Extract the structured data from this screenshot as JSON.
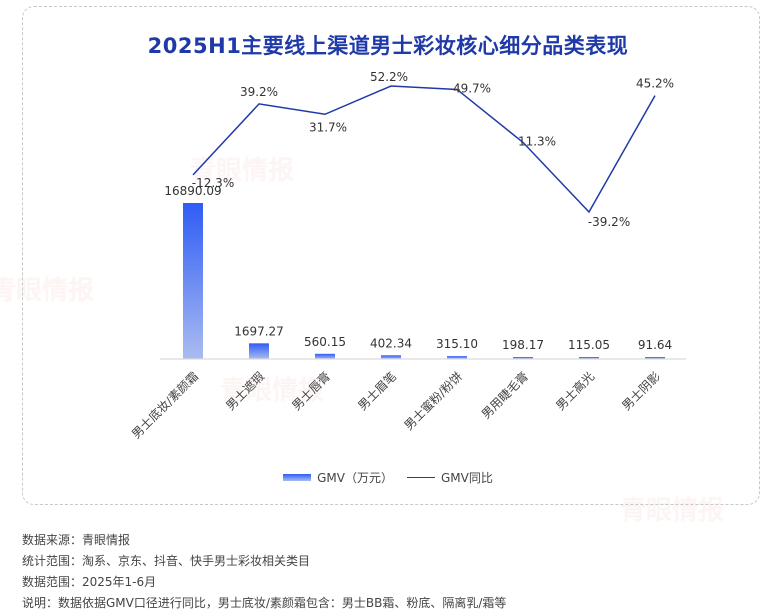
{
  "title": "2025H1主要线上渠道男士彩妆核心细分品类表现",
  "legend": {
    "bar_label": "GMV（万元）",
    "line_label": "GMV同比"
  },
  "colors": {
    "title": "#1f3aa8",
    "bar_top": "#2f5cf5",
    "bar_bottom": "#a9bcf0",
    "line": "#1f3aa8",
    "axis": "#d9d9d9"
  },
  "chart_data": {
    "type": "bar+line",
    "title": "2025H1主要线上渠道男士彩妆核心细分品类表现",
    "categories": [
      "男士底妆/素颜霜",
      "男士遮瑕",
      "男士唇膏",
      "男士眉笔",
      "男士蜜粉/粉饼",
      "男用睫毛膏",
      "男士高光",
      "男士阴影"
    ],
    "series": [
      {
        "name": "GMV（万元）",
        "type": "bar",
        "values": [
          16890.09,
          1697.27,
          560.15,
          402.34,
          315.1,
          198.17,
          115.05,
          91.64
        ],
        "labels": [
          "16890.09",
          "1697.27",
          "560.15",
          "402.34",
          "315.10",
          "198.17",
          "115.05",
          "91.64"
        ]
      },
      {
        "name": "GMV同比",
        "type": "line",
        "values": [
          -12.3,
          39.2,
          31.7,
          52.2,
          49.7,
          11.3,
          -39.2,
          45.2
        ],
        "labels": [
          "-12.3%",
          "39.2%",
          "31.7%",
          "52.2%",
          "49.7%",
          "11.3%",
          "-39.2%",
          "45.2%"
        ]
      }
    ],
    "xlabel": "",
    "ylabel": "",
    "grid": false,
    "legend_position": "bottom"
  },
  "notes": [
    "数据来源：青眼情报",
    "统计范围：淘系、京东、抖音、快手男士彩妆相关类目",
    "数据范围：2025年1-6月",
    "说明：数据依据GMV口径进行同比，男士底妆/素颜霜包含：男士BB霜、粉底、隔离乳/霜等"
  ],
  "watermark": "青眼情报"
}
